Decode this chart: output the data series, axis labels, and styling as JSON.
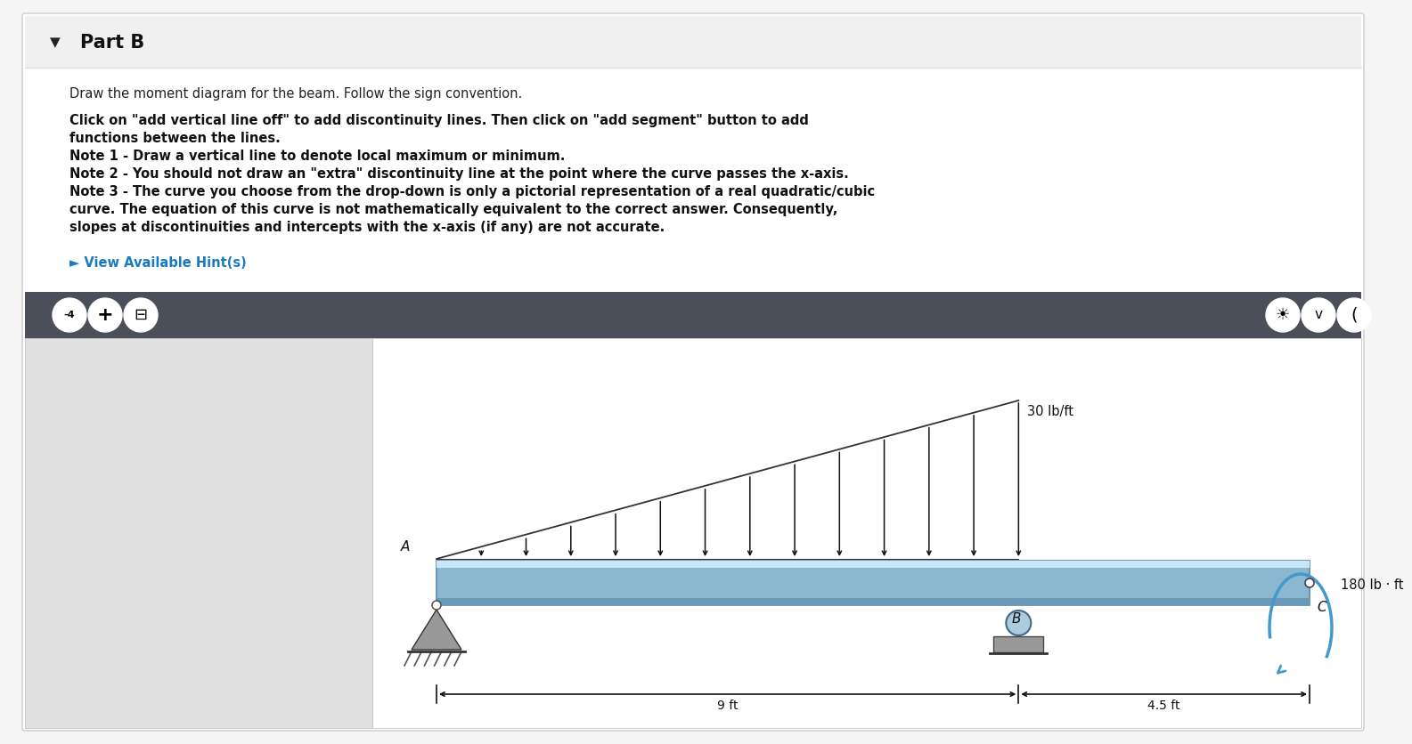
{
  "page_bg": "#f5f5f5",
  "card_bg": "#ffffff",
  "toolbar_bg": "#4a4f5a",
  "part_b_header_bg": "#f0f0f0",
  "part_b_text": "Part B",
  "instruction_normal": "Draw the moment diagram for the beam. Follow the sign convention.",
  "bold_line1a": "Click on \"add vertical line off\" to add discontinuity lines. Then click on \"add segment\" button to add",
  "bold_line1b": "functions between the lines.",
  "bold_line2": "Note 1 - Draw a vertical line to denote local maximum or minimum.",
  "bold_line3": "Note 2 - You should not draw an \"extra\" discontinuity line at the point where the curve passes the x-axis.",
  "bold_line4a": "Note 3 - The curve you choose from the drop-down is only a pictorial representation of a real quadratic/cubic",
  "bold_line4b": "curve. The equation of this curve is not mathematically equivalent to the correct answer. Consequently,",
  "bold_line4c": "slopes at discontinuities and intercepts with the x-axis (if any) are not accurate.",
  "hint_text": "► View Available Hint(s)",
  "hint_color": "#1a7abf",
  "beam_color": "#8ab8d0",
  "beam_outline": "#5a8aaa",
  "beam_top_highlight": "#c8e8f8",
  "load_arrow_color": "#111111",
  "moment_arrow_color": "#4499cc",
  "load_label": "30 lb/ft",
  "moment_label": "180 lb · ft",
  "dim_AB": "9 ft",
  "dim_BC": "4.5 ft",
  "point_A": "A",
  "point_B": "B",
  "point_C": "C",
  "num_load_arrows": 14
}
